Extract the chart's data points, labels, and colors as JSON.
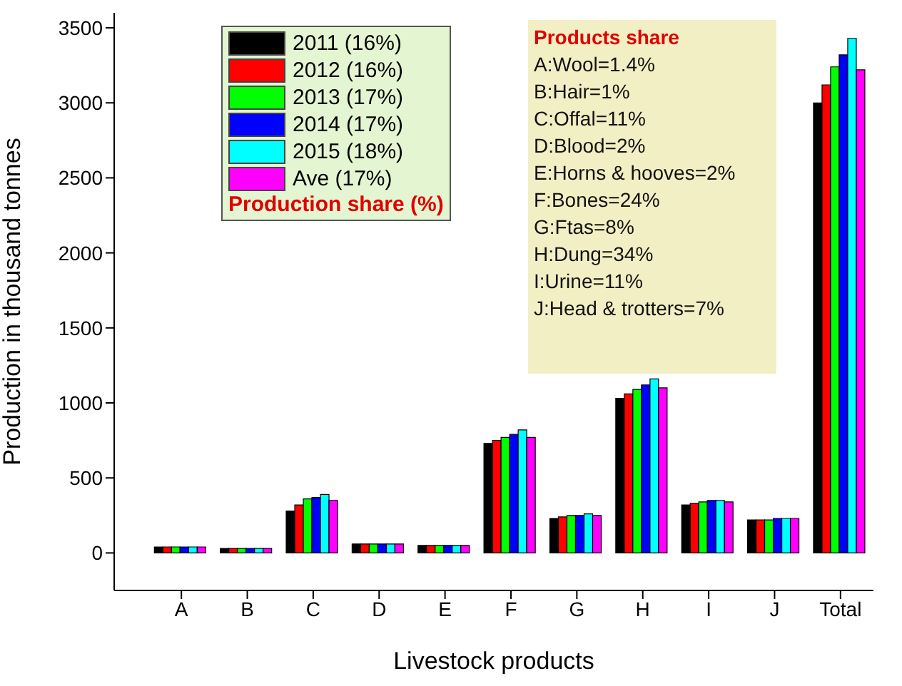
{
  "chart_data": {
    "type": "bar",
    "xlabel": "Livestock products",
    "ylabel": "Production in thousand tonnes",
    "legend_title": "Production share (%)",
    "legend": "top left",
    "grid": false,
    "categories": [
      "A",
      "B",
      "C",
      "D",
      "E",
      "F",
      "G",
      "H",
      "I",
      "J",
      "Total"
    ],
    "ylim": [
      -250,
      3600
    ],
    "yticks": [
      0,
      500,
      1000,
      1500,
      2000,
      2500,
      3000,
      3500
    ],
    "series": [
      {
        "name": "2011 (16%)",
        "color": "#000000",
        "values": [
          40,
          30,
          280,
          60,
          50,
          730,
          230,
          1030,
          320,
          220,
          3000
        ]
      },
      {
        "name": "2012 (16%)",
        "color": "#ff0000",
        "values": [
          40,
          30,
          320,
          60,
          50,
          750,
          240,
          1060,
          330,
          220,
          3120
        ]
      },
      {
        "name": "2013 (17%)",
        "color": "#00ff00",
        "values": [
          40,
          30,
          360,
          60,
          50,
          770,
          250,
          1090,
          340,
          220,
          3240
        ]
      },
      {
        "name": "2014 (17%)",
        "color": "#0000ff",
        "values": [
          40,
          30,
          370,
          60,
          50,
          790,
          250,
          1120,
          350,
          230,
          3320
        ]
      },
      {
        "name": "2015 (18%)",
        "color": "#00ffff",
        "values": [
          40,
          30,
          390,
          60,
          50,
          820,
          260,
          1160,
          350,
          230,
          3430
        ]
      },
      {
        "name": "Ave (17%)",
        "color": "#ff00ff",
        "values": [
          40,
          30,
          350,
          60,
          50,
          770,
          250,
          1100,
          340,
          230,
          3220
        ]
      }
    ],
    "annotations": [
      "Products share",
      "A:Wool=1.4%",
      "B:Hair=1%",
      "C:Offal=11%",
      "D:Blood=2%",
      "E:Horns & hooves=2%",
      "F:Bones=24%",
      "G:Ftas=8%",
      "H:Dung=34%",
      "I:Urine=11%",
      "J:Head & trotters=7%"
    ]
  }
}
